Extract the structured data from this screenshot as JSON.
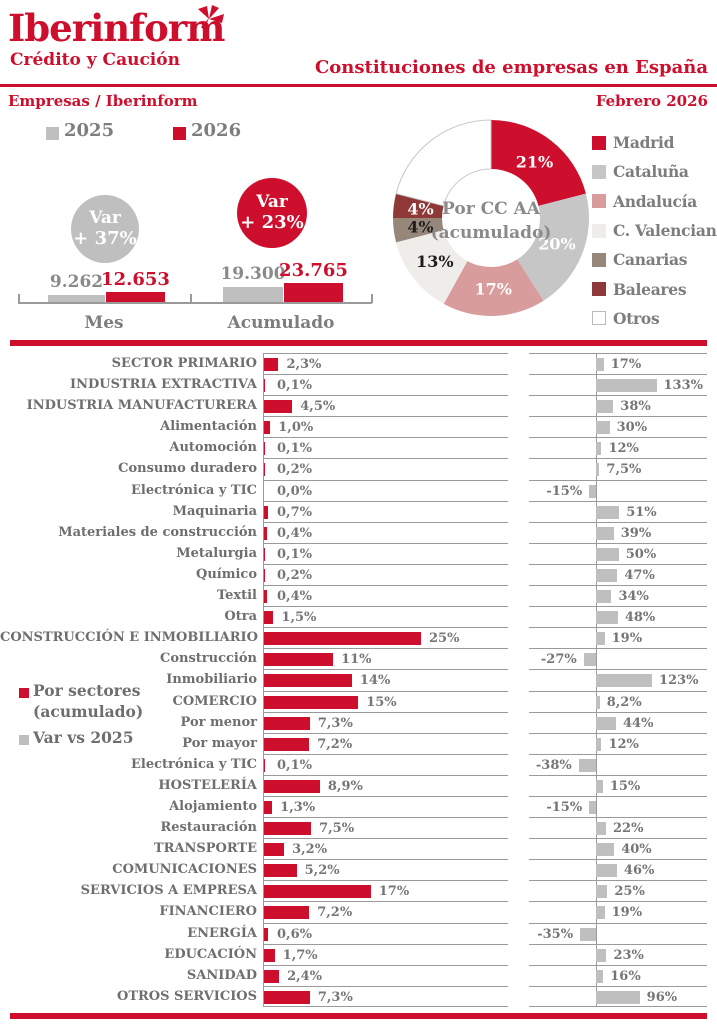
{
  "brand": {
    "name": "Iberinform",
    "tagline": "Crédito y Caución"
  },
  "header": {
    "title": "Constituciones de empresas en España",
    "section": "Empresas / Iberinform",
    "date": "Febrero 2026"
  },
  "colors": {
    "accent_red": "#ce0e2d",
    "gray_bar": "#bfbfbf",
    "label_gray": "#6e6e6e",
    "value_gray": "#757575",
    "line_gray": "#9a9a9a"
  },
  "chart_data": [
    {
      "id": "totals",
      "type": "bar",
      "categories": [
        "Mes",
        "Acumulado"
      ],
      "series": [
        {
          "name": "2025",
          "color": "#bfbfbf",
          "values": [
            9262,
            19300
          ],
          "labels": [
            "9.262",
            "19.300"
          ]
        },
        {
          "name": "2026",
          "color": "#ce0e2d",
          "values": [
            12653,
            23765
          ],
          "labels": [
            "12.653",
            "23.765"
          ]
        }
      ],
      "badges": [
        {
          "line1": "Var",
          "line2": "+ 37%",
          "color": "#bfbfbf"
        },
        {
          "line1": "Var",
          "line2": "+ 23%",
          "color": "#ce0e2d"
        }
      ]
    },
    {
      "id": "ccaa",
      "type": "pie",
      "center_line1": "Por CC AA",
      "center_line2": "(acumulado)",
      "slices": [
        {
          "label": "Madrid",
          "value": 21,
          "pct": "21%",
          "color": "#ce0e2d",
          "text": "#ffffff"
        },
        {
          "label": "Cataluña",
          "value": 20,
          "pct": "20%",
          "color": "#c6c6c6",
          "text": "#ffffff"
        },
        {
          "label": "Andalucía",
          "value": 17,
          "pct": "17%",
          "color": "#d99c9c",
          "text": "#ffffff"
        },
        {
          "label": "C. Valenciana",
          "value": 13,
          "pct": "13%",
          "color": "#efedea",
          "text": "#1d1d1b"
        },
        {
          "label": "Canarias",
          "value": 4,
          "pct": "4%",
          "color": "#97877b",
          "text": "#1d1d1b"
        },
        {
          "label": "Baleares",
          "value": 4,
          "pct": "4%",
          "color": "#8e3837",
          "text": "#ffffff"
        },
        {
          "label": "Otros",
          "value": 21,
          "pct": "",
          "color": "#ffffff",
          "text": "#1d1d1b"
        }
      ]
    },
    {
      "id": "sectors",
      "type": "bar",
      "legend": [
        {
          "label_line1": "Por sectores",
          "label_line2": "(acumulado)",
          "color": "#ce0e2d"
        },
        {
          "label_line1": "Var vs 2025",
          "label_line2": "",
          "color": "#bfbfbf"
        }
      ],
      "rows": [
        {
          "label": "SECTOR PRIMARIO",
          "major": true,
          "share": 2.3,
          "share_label": "2,3%",
          "var": 17,
          "var_label": "17%"
        },
        {
          "label": "INDUSTRIA EXTRACTIVA",
          "major": true,
          "share": 0.1,
          "share_label": "0,1%",
          "var": 133,
          "var_label": "133%"
        },
        {
          "label": "INDUSTRIA MANUFACTURERA",
          "major": true,
          "share": 4.5,
          "share_label": "4,5%",
          "var": 38,
          "var_label": "38%"
        },
        {
          "label": "Alimentación",
          "major": false,
          "share": 1.0,
          "share_label": "1,0%",
          "var": 30,
          "var_label": "30%"
        },
        {
          "label": "Automoción",
          "major": false,
          "share": 0.1,
          "share_label": "0,1%",
          "var": 12,
          "var_label": "12%"
        },
        {
          "label": "Consumo duradero",
          "major": false,
          "share": 0.2,
          "share_label": "0,2%",
          "var": 7.5,
          "var_label": "7,5%"
        },
        {
          "label": "Electrónica y TIC",
          "major": false,
          "share": 0.0,
          "share_label": "0,0%",
          "var": -15,
          "var_label": "-15%"
        },
        {
          "label": "Maquinaria",
          "major": false,
          "share": 0.7,
          "share_label": "0,7%",
          "var": 51,
          "var_label": "51%"
        },
        {
          "label": "Materiales de construcción",
          "major": false,
          "share": 0.4,
          "share_label": "0,4%",
          "var": 39,
          "var_label": "39%"
        },
        {
          "label": "Metalurgia",
          "major": false,
          "share": 0.1,
          "share_label": "0,1%",
          "var": 50,
          "var_label": "50%"
        },
        {
          "label": "Químico",
          "major": false,
          "share": 0.2,
          "share_label": "0,2%",
          "var": 47,
          "var_label": "47%"
        },
        {
          "label": "Textil",
          "major": false,
          "share": 0.4,
          "share_label": "0,4%",
          "var": 34,
          "var_label": "34%"
        },
        {
          "label": "Otra",
          "major": false,
          "share": 1.5,
          "share_label": "1,5%",
          "var": 48,
          "var_label": "48%"
        },
        {
          "label": "CONSTRUCCIÓN E INMOBILIARIO",
          "major": true,
          "share": 25,
          "share_label": "25%",
          "var": 19,
          "var_label": "19%"
        },
        {
          "label": "Construcción",
          "major": false,
          "share": 11,
          "share_label": "11%",
          "var": -27,
          "var_label": "-27%"
        },
        {
          "label": "Inmobiliario",
          "major": false,
          "share": 14,
          "share_label": "14%",
          "var": 123,
          "var_label": "123%"
        },
        {
          "label": "COMERCIO",
          "major": true,
          "share": 15,
          "share_label": "15%",
          "var": 8.2,
          "var_label": "8,2%"
        },
        {
          "label": "Por menor",
          "major": false,
          "share": 7.3,
          "share_label": "7,3%",
          "var": 44,
          "var_label": "44%"
        },
        {
          "label": "Por mayor",
          "major": false,
          "share": 7.2,
          "share_label": "7,2%",
          "var": 12,
          "var_label": "12%"
        },
        {
          "label": "Electrónica y TIC",
          "major": false,
          "share": 0.1,
          "share_label": "0,1%",
          "var": -38,
          "var_label": "-38%"
        },
        {
          "label": "HOSTELERÍA",
          "major": true,
          "share": 8.9,
          "share_label": "8,9%",
          "var": 15,
          "var_label": "15%"
        },
        {
          "label": "Alojamiento",
          "major": false,
          "share": 1.3,
          "share_label": "1,3%",
          "var": -15,
          "var_label": "-15%"
        },
        {
          "label": "Restauración",
          "major": false,
          "share": 7.5,
          "share_label": "7,5%",
          "var": 22,
          "var_label": "22%"
        },
        {
          "label": "TRANSPORTE",
          "major": true,
          "share": 3.2,
          "share_label": "3,2%",
          "var": 40,
          "var_label": "40%"
        },
        {
          "label": "COMUNICACIONES",
          "major": true,
          "share": 5.2,
          "share_label": "5,2%",
          "var": 46,
          "var_label": "46%"
        },
        {
          "label": "SERVICIOS A EMPRESA",
          "major": true,
          "share": 17,
          "share_label": "17%",
          "var": 25,
          "var_label": "25%"
        },
        {
          "label": "FINANCIERO",
          "major": true,
          "share": 7.2,
          "share_label": "7,2%",
          "var": 19,
          "var_label": "19%"
        },
        {
          "label": "ENERGÍA",
          "major": true,
          "share": 0.6,
          "share_label": "0,6%",
          "var": -35,
          "var_label": "-35%"
        },
        {
          "label": "EDUCACIÓN",
          "major": true,
          "share": 1.7,
          "share_label": "1,7%",
          "var": 23,
          "var_label": "23%"
        },
        {
          "label": "SANIDAD",
          "major": true,
          "share": 2.4,
          "share_label": "2,4%",
          "var": 16,
          "var_label": "16%"
        },
        {
          "label": "OTROS SERVICIOS",
          "major": true,
          "share": 7.3,
          "share_label": "7,3%",
          "var": 96,
          "var_label": "96%"
        }
      ]
    }
  ]
}
